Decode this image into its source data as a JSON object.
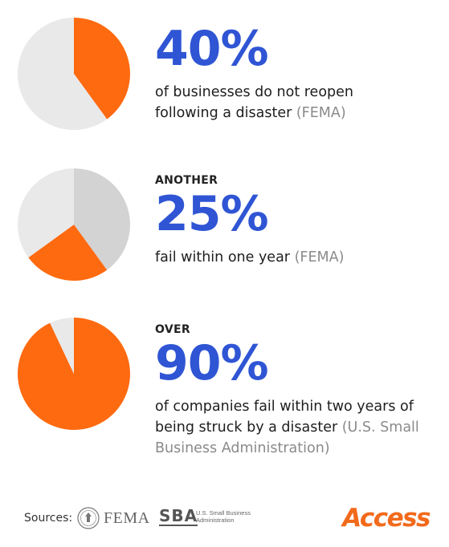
{
  "colors": {
    "accent": "#fe6a10",
    "muted": "#e9e9ea",
    "muted_dark": "#d3d3d3",
    "stat_blue": "#2f55d4",
    "source_gray": "#8a8a8a"
  },
  "chart_data": [
    {
      "type": "pie",
      "title": "",
      "slices": [
        {
          "value": 40,
          "color": "#fe6a10"
        },
        {
          "value": 60,
          "color": "#e9e9ea"
        }
      ]
    },
    {
      "type": "pie",
      "title": "",
      "slices": [
        {
          "value": 40,
          "color": "#d3d3d3"
        },
        {
          "value": 25,
          "color": "#fe6a10"
        },
        {
          "value": 35,
          "color": "#e9e9ea"
        }
      ]
    },
    {
      "type": "pie",
      "title": "",
      "slices": [
        {
          "value": 93,
          "color": "#fe6a10"
        },
        {
          "value": 7,
          "color": "#e9e9ea"
        }
      ]
    }
  ],
  "stats": [
    {
      "pre": "",
      "value": "40%",
      "text": "of businesses do not reopen following a disaster",
      "source": "(FEMA)"
    },
    {
      "pre": "ANOTHER",
      "value": "25%",
      "text": "fail within one year",
      "source": "(FEMA)"
    },
    {
      "pre": "OVER",
      "value": "90%",
      "text": "of companies fail within two years of being struck by a disaster",
      "source": "(U.S. Small Business Administration)"
    }
  ],
  "footer": {
    "label": "Sources:",
    "fema_logo": "FEMA",
    "sba_logo": "SBA",
    "sba_name": "U.S. Small Business Administration",
    "brand": "Access"
  }
}
